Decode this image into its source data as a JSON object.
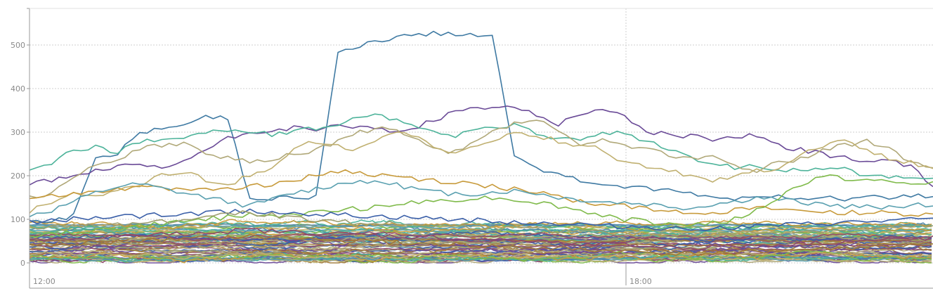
{
  "chart_data": {
    "type": "line",
    "title": "",
    "xlabel": "",
    "ylabel": "",
    "x_range": [
      "11:55",
      "23:55"
    ],
    "x_ticks": [
      "12:00",
      "18:00"
    ],
    "ylim": [
      0,
      550
    ],
    "y_ticks": [
      "0",
      "100",
      "200",
      "300",
      "400",
      "500"
    ],
    "grid": true,
    "legend": "none",
    "palette": [
      "#4f86a9",
      "#6a4a97",
      "#4db39a",
      "#b0a878",
      "#c79a3a",
      "#3a5fa8",
      "#7fba4a",
      "#9e9e6e",
      "#c0b070",
      "#8e4a6a",
      "#5aa0b0",
      "#a07a3a"
    ],
    "series_count_note": "",
    "series": [
      {
        "color": "#3f7aa3",
        "values": [
          100,
          95,
          110,
          240,
          250,
          300,
          310,
          320,
          335,
          330,
          150,
          148,
          152,
          150,
          480,
          500,
          510,
          520,
          525,
          528,
          525,
          520,
          250,
          220,
          200,
          190,
          180,
          175,
          170,
          165,
          160,
          150,
          148,
          150,
          155,
          150,
          152,
          148,
          150,
          152,
          155,
          150
        ]
      },
      {
        "color": "#6a4a97",
        "values": [
          180,
          190,
          200,
          210,
          220,
          225,
          215,
          235,
          260,
          285,
          300,
          305,
          310,
          300,
          320,
          310,
          305,
          300,
          320,
          340,
          350,
          355,
          360,
          340,
          320,
          345,
          350,
          340,
          300,
          295,
          290,
          285,
          290,
          295,
          270,
          260,
          250,
          240,
          230,
          235,
          220,
          180
        ]
      },
      {
        "color": "#4db39a",
        "values": [
          210,
          230,
          260,
          265,
          255,
          275,
          285,
          290,
          300,
          305,
          300,
          295,
          300,
          310,
          320,
          335,
          340,
          320,
          310,
          290,
          300,
          310,
          320,
          300,
          285,
          280,
          300,
          295,
          280,
          260,
          240,
          230,
          220,
          220,
          215,
          210,
          220,
          215,
          200,
          195,
          200,
          190
        ]
      },
      {
        "color": "#b0a878",
        "values": [
          150,
          160,
          200,
          220,
          240,
          260,
          270,
          275,
          250,
          240,
          230,
          235,
          250,
          260,
          280,
          300,
          310,
          295,
          270,
          250,
          270,
          300,
          320,
          330,
          300,
          270,
          280,
          270,
          260,
          250,
          240,
          250,
          220,
          210,
          230,
          240,
          260,
          270,
          280,
          260,
          230,
          220
        ]
      },
      {
        "color": "#c0b070",
        "values": [
          120,
          140,
          160,
          150,
          170,
          180,
          200,
          210,
          190,
          180,
          200,
          220,
          260,
          280,
          270,
          260,
          290,
          300,
          280,
          250,
          260,
          280,
          300,
          290,
          280,
          270,
          260,
          230,
          220,
          210,
          200,
          190,
          200,
          210,
          220,
          250,
          270,
          280,
          260,
          240,
          230,
          220
        ]
      },
      {
        "color": "#c79a3a",
        "values": [
          150,
          155,
          160,
          165,
          170,
          175,
          170,
          168,
          172,
          170,
          175,
          180,
          190,
          200,
          210,
          205,
          200,
          195,
          190,
          185,
          180,
          175,
          170,
          165,
          150,
          140,
          135,
          130,
          125,
          120,
          118,
          115,
          120,
          125,
          122,
          120,
          118,
          116,
          115,
          114,
          112,
          110
        ]
      },
      {
        "color": "#5aa0b0",
        "values": [
          110,
          120,
          140,
          160,
          175,
          180,
          170,
          160,
          150,
          140,
          130,
          145,
          160,
          170,
          180,
          190,
          185,
          175,
          165,
          160,
          158,
          162,
          165,
          160,
          150,
          145,
          140,
          138,
          135,
          130,
          125,
          135,
          140,
          150,
          145,
          140,
          135,
          130,
          128,
          130,
          132,
          135
        ]
      },
      {
        "color": "#7fba4a",
        "values": [
          60,
          65,
          70,
          75,
          80,
          85,
          90,
          95,
          100,
          105,
          110,
          108,
          112,
          115,
          120,
          125,
          130,
          135,
          140,
          145,
          148,
          150,
          145,
          140,
          130,
          120,
          110,
          100,
          95,
          90,
          88,
          92,
          100,
          120,
          150,
          180,
          200,
          195,
          190,
          185,
          180,
          185
        ]
      },
      {
        "color": "#3a5fa8",
        "values": [
          95,
          98,
          100,
          102,
          105,
          108,
          110,
          112,
          115,
          118,
          120,
          118,
          115,
          112,
          110,
          108,
          106,
          104,
          102,
          100,
          98,
          96,
          94,
          92,
          90,
          88,
          86,
          84,
          82,
          80,
          78,
          80,
          82,
          84,
          86,
          88,
          90,
          92,
          94,
          96,
          98,
          100
        ]
      },
      {
        "color": "#9e9e6e",
        "values": [
          80,
          82,
          85,
          88,
          90,
          92,
          95,
          100,
          105,
          110,
          115,
          110,
          105,
          100,
          95,
          92,
          90,
          88,
          86,
          84,
          82,
          80,
          78,
          76,
          74,
          72,
          70,
          68,
          66,
          64,
          62,
          64,
          66,
          68,
          70,
          72,
          74,
          76,
          78,
          80,
          82,
          84
        ]
      },
      {
        "color": "#8e4a6a",
        "values": [
          50,
          52,
          55,
          58,
          60,
          62,
          65,
          68,
          70,
          72,
          75,
          72,
          70,
          68,
          66,
          64,
          62,
          60,
          58,
          56,
          54,
          52,
          50,
          48,
          46,
          44,
          42,
          40,
          38,
          36,
          34,
          36,
          38,
          40,
          42,
          44,
          46,
          48,
          50,
          52,
          54,
          56
        ]
      },
      {
        "color": "#a07a3a",
        "values": [
          40,
          42,
          44,
          46,
          48,
          50,
          52,
          54,
          56,
          58,
          60,
          58,
          56,
          54,
          52,
          50,
          48,
          46,
          44,
          42,
          40,
          38,
          36,
          34,
          32,
          30,
          28,
          26,
          24,
          22,
          20,
          22,
          24,
          26,
          28,
          30,
          32,
          34,
          36,
          38,
          40,
          42
        ]
      }
    ]
  }
}
